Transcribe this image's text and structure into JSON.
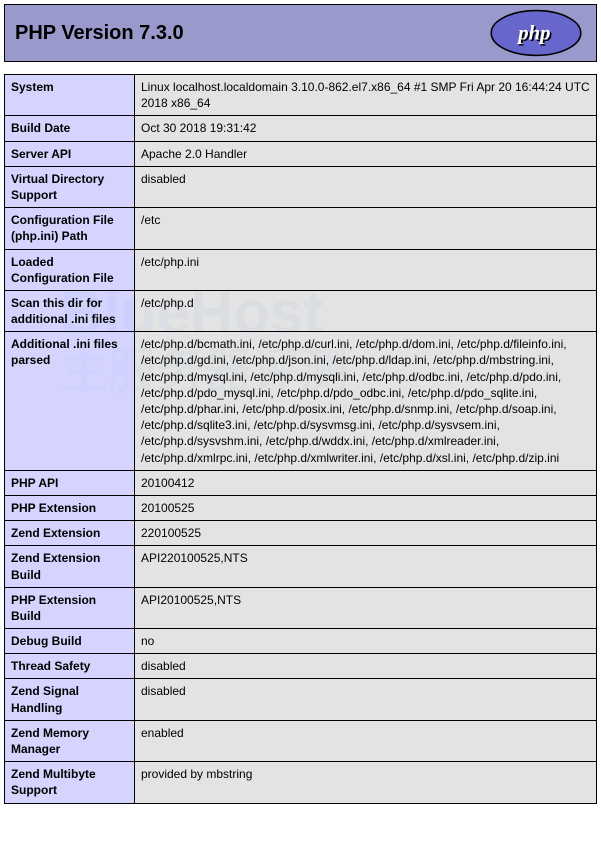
{
  "header": {
    "title_prefix": "PHP Version ",
    "version": "7.3.0",
    "logo_text": "php"
  },
  "colors": {
    "header_bg": "#9999cc",
    "label_bg": "#ccccff",
    "value_bg": "#dddddd",
    "border": "#000000",
    "logo_bg": "#6666cc",
    "logo_text": "#ffffff"
  },
  "rows": [
    {
      "label": "System",
      "value": "Linux localhost.localdomain 3.10.0-862.el7.x86_64 #1 SMP Fri Apr 20 16:44:24 UTC 2018 x86_64"
    },
    {
      "label": "Build Date",
      "value": "Oct 30 2018 19:31:42"
    },
    {
      "label": "Server API",
      "value": "Apache 2.0 Handler"
    },
    {
      "label": "Virtual Directory Support",
      "value": "disabled"
    },
    {
      "label": "Configuration File (php.ini) Path",
      "value": "/etc"
    },
    {
      "label": "Loaded Configuration File",
      "value": "/etc/php.ini"
    },
    {
      "label": "Scan this dir for additional .ini files",
      "value": "/etc/php.d"
    },
    {
      "label": "Additional .ini files parsed",
      "value": "/etc/php.d/bcmath.ini, /etc/php.d/curl.ini, /etc/php.d/dom.ini, /etc/php.d/fileinfo.ini, /etc/php.d/gd.ini, /etc/php.d/json.ini, /etc/php.d/ldap.ini, /etc/php.d/mbstring.ini, /etc/php.d/mysql.ini, /etc/php.d/mysqli.ini, /etc/php.d/odbc.ini, /etc/php.d/pdo.ini, /etc/php.d/pdo_mysql.ini, /etc/php.d/pdo_odbc.ini, /etc/php.d/pdo_sqlite.ini, /etc/php.d/phar.ini, /etc/php.d/posix.ini, /etc/php.d/snmp.ini, /etc/php.d/soap.ini, /etc/php.d/sqlite3.ini, /etc/php.d/sysvmsg.ini, /etc/php.d/sysvsem.ini, /etc/php.d/sysvshm.ini, /etc/php.d/wddx.ini, /etc/php.d/xmlreader.ini, /etc/php.d/xmlrpc.ini, /etc/php.d/xmlwriter.ini, /etc/php.d/xsl.ini, /etc/php.d/zip.ini"
    },
    {
      "label": "PHP API",
      "value": "20100412"
    },
    {
      "label": "PHP Extension",
      "value": "20100525"
    },
    {
      "label": "Zend Extension",
      "value": "220100525"
    },
    {
      "label": "Zend Extension Build",
      "value": "API220100525,NTS"
    },
    {
      "label": "PHP Extension Build",
      "value": "API20100525,NTS"
    },
    {
      "label": "Debug Build",
      "value": "no"
    },
    {
      "label": "Thread Safety",
      "value": "disabled"
    },
    {
      "label": "Zend Signal Handling",
      "value": "disabled"
    },
    {
      "label": "Zend Memory Manager",
      "value": "enabled"
    },
    {
      "label": "Zend Multibyte Support",
      "value": "provided by mbstring"
    }
  ],
  "watermark": {
    "line1": "BlueHost",
    "line2": "主服务器评测"
  }
}
